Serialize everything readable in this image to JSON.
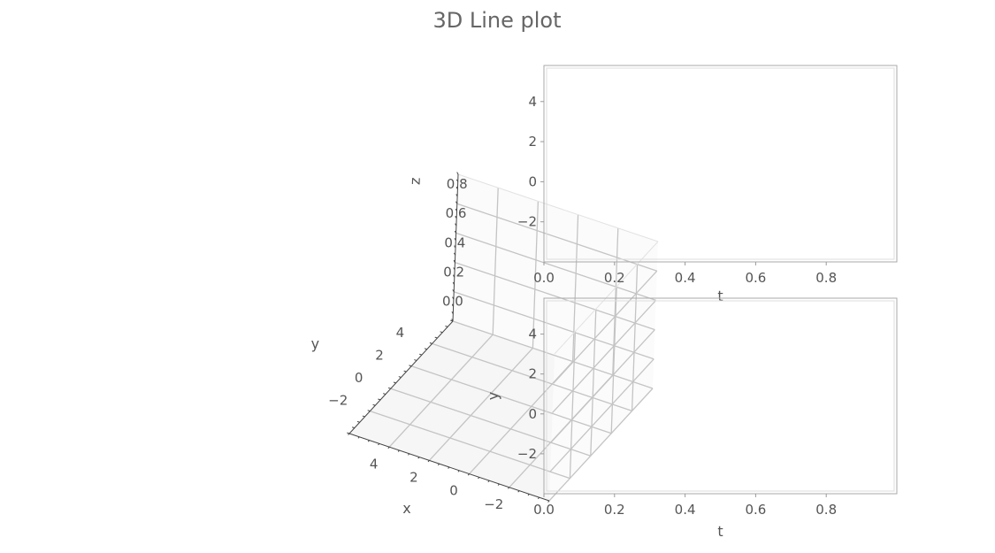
{
  "title": "3D Line plot",
  "chart_data": [
    {
      "type": "line",
      "projection": "3d",
      "series": [],
      "xlabel": "x",
      "ylabel": "y",
      "zlabel": "z",
      "xlim": [
        -4,
        6
      ],
      "ylim": [
        -4,
        6
      ],
      "zlim": [
        0,
        1
      ],
      "xticks": [
        "−2",
        "0",
        "2",
        "4"
      ],
      "yticks": [
        "−2",
        "0",
        "2",
        "4"
      ],
      "zticks": [
        "0.0",
        "0.2",
        "0.4",
        "0.6",
        "0.8"
      ],
      "grid": true
    },
    {
      "type": "line",
      "series": [],
      "xlabel": "t",
      "ylabel": "",
      "xlim": [
        0,
        1
      ],
      "ylim": [
        -4,
        5.8
      ],
      "xticks": [
        "0.0",
        "0.2",
        "0.4",
        "0.6",
        "0.8"
      ],
      "yticks": [
        "−2",
        "0",
        "2",
        "4"
      ],
      "grid": false
    },
    {
      "type": "line",
      "series": [],
      "xlabel": "t",
      "ylabel": "y",
      "xlim": [
        0,
        1
      ],
      "ylim": [
        -4,
        5.8
      ],
      "xticks": [
        "0.0",
        "0.2",
        "0.4",
        "0.6",
        "0.8"
      ],
      "yticks": [
        "−2",
        "0",
        "2",
        "4"
      ],
      "grid": false
    }
  ]
}
